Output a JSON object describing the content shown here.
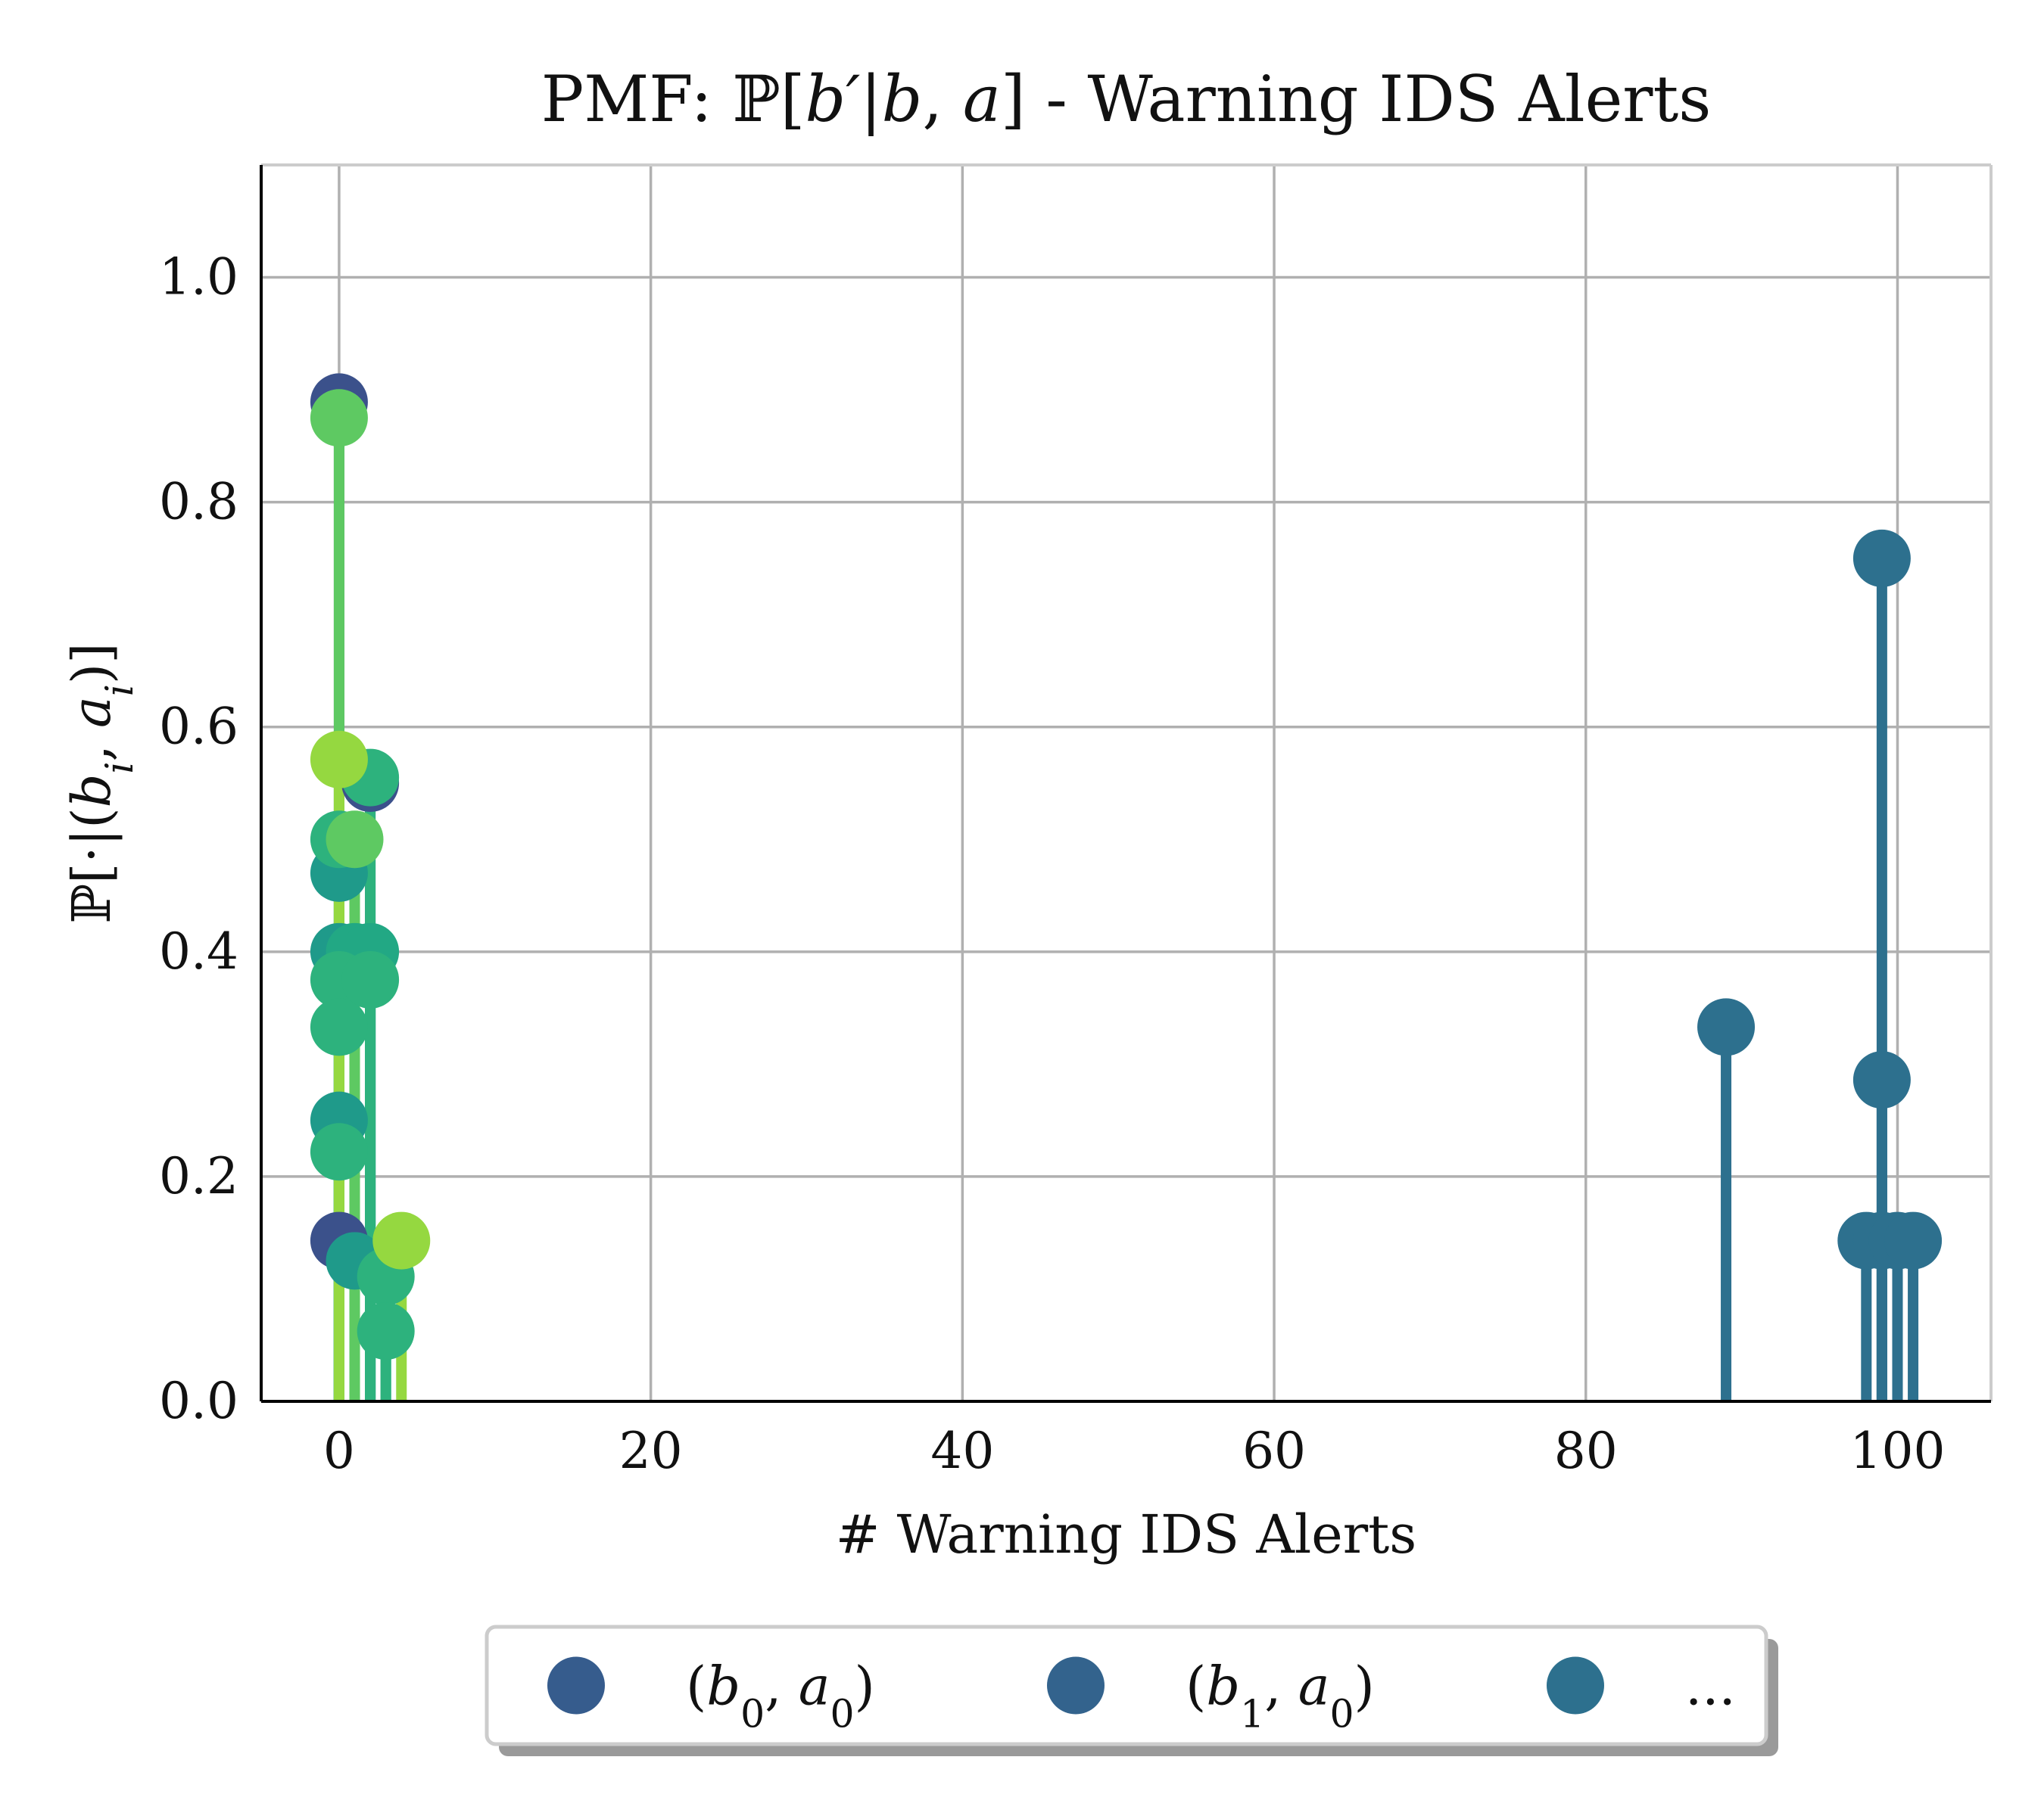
{
  "chart_data": {
    "type": "stem",
    "title_parts": [
      {
        "t": "PMF: ",
        "i": false
      },
      {
        "t": "ℙ",
        "i": false
      },
      {
        "t": "[",
        "i": false
      },
      {
        "t": "b′",
        "i": true
      },
      {
        "t": "|",
        "i": false
      },
      {
        "t": "b",
        "i": true
      },
      {
        "t": ", ",
        "i": false
      },
      {
        "t": "a",
        "i": true
      },
      {
        "t": "] - Warning IDS Alerts",
        "i": false
      }
    ],
    "xlabel": "# Warning IDS Alerts",
    "ylabel_parts": [
      {
        "t": "ℙ[·|(",
        "i": false
      },
      {
        "t": "b",
        "i": true
      },
      {
        "t": "i",
        "i": true,
        "sub": true
      },
      {
        "t": ", ",
        "i": false
      },
      {
        "t": "a",
        "i": true
      },
      {
        "t": "i",
        "i": true,
        "sub": true
      },
      {
        "t": ")]",
        "i": false
      }
    ],
    "xlim": [
      -5,
      106
    ],
    "ylim": [
      0,
      1.1
    ],
    "xticks": [
      0,
      20,
      40,
      60,
      80,
      100
    ],
    "yticks": [
      0.0,
      0.2,
      0.4,
      0.6,
      0.8,
      1.0
    ],
    "xtick_labels": [
      "0",
      "20",
      "40",
      "60",
      "80",
      "100"
    ],
    "ytick_labels": [
      "0.0",
      "0.2",
      "0.4",
      "0.6",
      "0.8",
      "1.0"
    ],
    "grid": true,
    "legend_position": "bottom-center",
    "legend": [
      {
        "b": "0",
        "a": "0",
        "color": "#365c8d"
      },
      {
        "b": "1",
        "a": "0",
        "color": "#33638d"
      },
      {
        "text": "...",
        "color": "#2d708e"
      }
    ],
    "series": [
      {
        "color": "#2d708e",
        "points": [
          [
            89,
            0.333
          ],
          [
            98,
            0.143
          ],
          [
            99,
            0.75
          ],
          [
            99,
            0.286
          ],
          [
            99,
            0.143
          ],
          [
            100,
            0.143
          ],
          [
            101,
            0.143
          ]
        ]
      },
      {
        "color": "#3b518b",
        "points": [
          [
            0,
            0.889
          ],
          [
            2,
            0.55
          ],
          [
            0,
            0.143
          ]
        ]
      },
      {
        "color": "#1f9a8a",
        "points": [
          [
            0,
            0.47
          ],
          [
            0,
            0.4
          ],
          [
            0,
            0.25
          ],
          [
            1,
            0.125
          ]
        ]
      },
      {
        "color": "#22a884",
        "points": [
          [
            1,
            0.4
          ],
          [
            2,
            0.4
          ]
        ]
      },
      {
        "color": "#2db27d",
        "points": [
          [
            0,
            0.5
          ],
          [
            0,
            0.375
          ],
          [
            0,
            0.333
          ],
          [
            0,
            0.222
          ],
          [
            2,
            0.375
          ],
          [
            2,
            0.555
          ],
          [
            3,
            0.111
          ],
          [
            3,
            0.0625
          ]
        ]
      },
      {
        "color": "#5ec962",
        "points": [
          [
            0,
            0.875
          ],
          [
            1,
            0.5
          ]
        ]
      },
      {
        "color": "#95d840",
        "points": [
          [
            0,
            0.571
          ],
          [
            4,
            0.143
          ]
        ]
      }
    ]
  }
}
